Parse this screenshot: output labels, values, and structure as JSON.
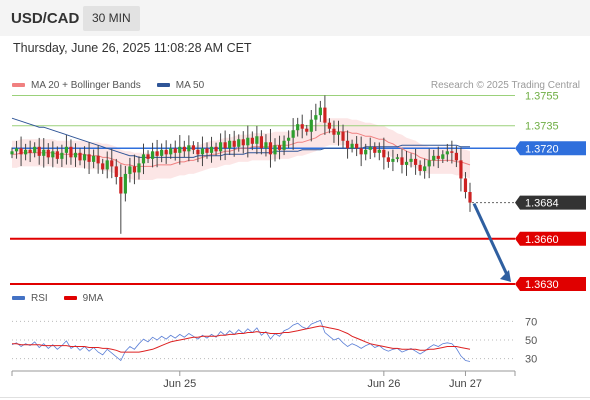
{
  "header": {
    "pair": "USD/CAD",
    "timeframe": "30 MIN"
  },
  "timestamp": "Thursday, June 26, 2025 11:08:28 AM CET",
  "price_legend": [
    {
      "label": "MA 20 + Bollinger Bands",
      "color": "#f08080"
    },
    {
      "label": "MA 50",
      "color": "#2f5597"
    }
  ],
  "credit": "Research © 2025 Trading Central",
  "rsi_legend": [
    {
      "label": "RSI",
      "color": "#4472c4"
    },
    {
      "label": "9MA",
      "color": "#e00000"
    }
  ],
  "colors": {
    "bull": "#2e9e2e",
    "bear": "#cc2222",
    "resistance": "#9bd17a",
    "support": "#e00000",
    "current_box": "#333333",
    "pivot_box": "#2f6fdc",
    "arrow": "#2f5fa0"
  },
  "chart_data": [
    {
      "type": "candlestick",
      "x_tick_labels": [
        "Jun 25",
        "Jun 26",
        "Jun 27"
      ],
      "ylim": [
        1.3626,
        1.3762
      ],
      "levels": [
        {
          "value": 1.3755,
          "label": "1.3755",
          "kind": "resistance"
        },
        {
          "value": 1.3735,
          "label": "1.3735",
          "kind": "resistance"
        },
        {
          "value": 1.372,
          "label": "1.3720",
          "kind": "pivot"
        },
        {
          "value": 1.3684,
          "label": "1.3684",
          "kind": "last"
        },
        {
          "value": 1.366,
          "label": "1.3660",
          "kind": "support"
        },
        {
          "value": 1.363,
          "label": "1.3630",
          "kind": "support"
        }
      ],
      "close": [
        1.3718,
        1.372,
        1.3716,
        1.3719,
        1.3717,
        1.3721,
        1.3715,
        1.3719,
        1.3714,
        1.3718,
        1.3713,
        1.3717,
        1.3721,
        1.3714,
        1.3717,
        1.3712,
        1.3716,
        1.3711,
        1.3715,
        1.371,
        1.3706,
        1.3712,
        1.3708,
        1.3701,
        1.369,
        1.3703,
        1.3708,
        1.3704,
        1.371,
        1.3716,
        1.3713,
        1.3718,
        1.3715,
        1.3719,
        1.3716,
        1.372,
        1.3717,
        1.3721,
        1.3718,
        1.3722,
        1.3719,
        1.3716,
        1.372,
        1.3717,
        1.3721,
        1.3718,
        1.3724,
        1.372,
        1.3725,
        1.3721,
        1.3726,
        1.3722,
        1.3727,
        1.3723,
        1.3728,
        1.372,
        1.3724,
        1.3716,
        1.3722,
        1.3719,
        1.3725,
        1.3727,
        1.3732,
        1.3736,
        1.3733,
        1.3731,
        1.3739,
        1.3742,
        1.3747,
        1.3737,
        1.3733,
        1.3729,
        1.3731,
        1.3725,
        1.372,
        1.3723,
        1.372,
        1.3716,
        1.3719,
        1.3721,
        1.3717,
        1.3719,
        1.3714,
        1.3711,
        1.3713,
        1.3714,
        1.3709,
        1.3711,
        1.3713,
        1.3709,
        1.3705,
        1.3708,
        1.3712,
        1.3715,
        1.3713,
        1.3716,
        1.3718,
        1.3717,
        1.3712,
        1.37,
        1.3691,
        1.3684
      ],
      "ma20": [
        1.3716,
        1.3716,
        1.3717,
        1.3717,
        1.3717,
        1.3717,
        1.3717,
        1.3717,
        1.3717,
        1.3717,
        1.3716,
        1.3716,
        1.3716,
        1.3716,
        1.3716,
        1.3716,
        1.3716,
        1.3715,
        1.3715,
        1.3715,
        1.3714,
        1.3714,
        1.3713,
        1.3712,
        1.371,
        1.3709,
        1.3709,
        1.3708,
        1.3708,
        1.3708,
        1.3708,
        1.3708,
        1.3709,
        1.3709,
        1.3709,
        1.3709,
        1.371,
        1.3711,
        1.3711,
        1.3712,
        1.3712,
        1.3713,
        1.3714,
        1.3715,
        1.3716,
        1.3716,
        1.3717,
        1.3718,
        1.3718,
        1.3719,
        1.372,
        1.372,
        1.372,
        1.3721,
        1.3721,
        1.3721,
        1.3721,
        1.3721,
        1.3722,
        1.3722,
        1.3722,
        1.3722,
        1.3723,
        1.3724,
        1.3724,
        1.3725,
        1.3726,
        1.3727,
        1.3729,
        1.373,
        1.3731,
        1.3731,
        1.3731,
        1.3731,
        1.3731,
        1.373,
        1.373,
        1.3729,
        1.3728,
        1.3728,
        1.3727,
        1.3726,
        1.3726,
        1.3724,
        1.3723,
        1.3721,
        1.372,
        1.3718,
        1.3717,
        1.3716,
        1.3714,
        1.3713,
        1.3712,
        1.3712,
        1.3712,
        1.3712,
        1.3712,
        1.3712,
        1.3711,
        1.3711,
        1.371,
        1.3709
      ],
      "bb_width": 0.0009,
      "ma50": [
        1.374,
        1.3739,
        1.3738,
        1.3737,
        1.3736,
        1.3735,
        1.3734,
        1.3734,
        1.3733,
        1.3732,
        1.3731,
        1.373,
        1.3729,
        1.3728,
        1.3727,
        1.3726,
        1.3725,
        1.3724,
        1.3723,
        1.3722,
        1.3721,
        1.372,
        1.3719,
        1.3718,
        1.3717,
        1.3716,
        1.3715,
        1.3715,
        1.3714,
        1.3714,
        1.3714,
        1.3714,
        1.3714,
        1.3714,
        1.3714,
        1.3714,
        1.3714,
        1.3714,
        1.3714,
        1.3714,
        1.3714,
        1.3715,
        1.3715,
        1.3715,
        1.3715,
        1.3715,
        1.3715,
        1.3716,
        1.3716,
        1.3716,
        1.3716,
        1.3716,
        1.3717,
        1.3717,
        1.3717,
        1.3717,
        1.3717,
        1.3717,
        1.3718,
        1.3718,
        1.3718,
        1.3718,
        1.3718,
        1.3718,
        1.3719,
        1.3719,
        1.3719,
        1.3719,
        1.3719,
        1.372,
        1.372,
        1.372,
        1.372,
        1.372,
        1.372,
        1.372,
        1.372,
        1.372,
        1.3721,
        1.3721,
        1.3721,
        1.3721,
        1.3721,
        1.3721,
        1.3721,
        1.3721,
        1.3722,
        1.3722,
        1.3722,
        1.3722,
        1.3722,
        1.3722,
        1.3722,
        1.3722,
        1.3722,
        1.3722,
        1.3722,
        1.3722,
        1.3722,
        1.3721,
        1.3721,
        1.3721
      ],
      "forecast": {
        "from": 1.3684,
        "to": 1.363
      }
    },
    {
      "type": "line",
      "title": "RSI",
      "y_tick_labels": [
        "70",
        "50",
        "30"
      ],
      "ylim": [
        20,
        80
      ],
      "series": [
        {
          "name": "RSI",
          "values": [
            45,
            47,
            43,
            46,
            44,
            48,
            42,
            46,
            41,
            45,
            40,
            44,
            49,
            41,
            44,
            39,
            43,
            38,
            42,
            37,
            34,
            40,
            36,
            32,
            28,
            38,
            43,
            40,
            46,
            51,
            48,
            53,
            50,
            54,
            51,
            55,
            52,
            56,
            53,
            57,
            54,
            51,
            55,
            52,
            56,
            53,
            59,
            55,
            60,
            56,
            61,
            57,
            62,
            58,
            63,
            55,
            59,
            51,
            57,
            54,
            60,
            62,
            66,
            68,
            64,
            62,
            67,
            69,
            71,
            58,
            54,
            50,
            52,
            47,
            43,
            46,
            44,
            41,
            44,
            46,
            42,
            44,
            40,
            38,
            40,
            41,
            37,
            39,
            41,
            38,
            35,
            38,
            42,
            45,
            43,
            46,
            47,
            46,
            41,
            33,
            28,
            27
          ]
        },
        {
          "name": "9MA",
          "values": [
            46,
            46,
            45,
            45,
            45,
            45,
            45,
            44,
            44,
            44,
            44,
            44,
            44,
            43,
            43,
            43,
            43,
            42,
            42,
            42,
            41,
            41,
            40,
            39,
            37,
            37,
            37,
            37,
            37,
            38,
            39,
            40,
            42,
            44,
            46,
            48,
            49,
            50,
            51,
            52,
            53,
            53,
            54,
            54,
            54,
            54,
            55,
            55,
            56,
            56,
            57,
            57,
            58,
            58,
            59,
            58,
            58,
            57,
            57,
            57,
            58,
            58,
            59,
            60,
            61,
            62,
            63,
            64,
            65,
            64,
            63,
            62,
            61,
            59,
            57,
            54,
            52,
            50,
            48,
            46,
            45,
            44,
            43,
            42,
            41,
            41,
            40,
            40,
            40,
            40,
            39,
            39,
            40,
            40,
            41,
            42,
            43,
            43,
            43,
            42,
            41,
            40
          ]
        }
      ]
    }
  ]
}
